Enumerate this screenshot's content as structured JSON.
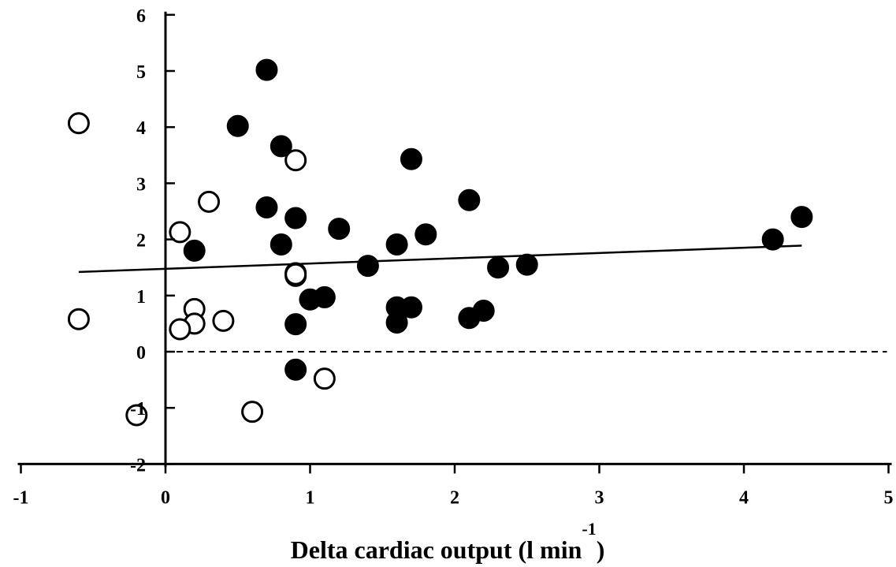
{
  "chart_data": {
    "type": "scatter",
    "title": "",
    "xlabel": "Delta cardiac output (l min",
    "xlabel_sup": "-1",
    "xlabel_close": ")",
    "ylabel": "",
    "xlim": [
      -1,
      5
    ],
    "ylim": [
      -2,
      6
    ],
    "x_ticks": [
      -1,
      0,
      1,
      2,
      3,
      4,
      5
    ],
    "y_ticks": [
      -2,
      -1,
      0,
      1,
      2,
      3,
      4,
      5,
      6
    ],
    "grid": false,
    "legend": "none",
    "reference_line": {
      "y": 0,
      "style": "dashed"
    },
    "trend_line": {
      "x": [
        -0.6,
        4.4
      ],
      "y": [
        1.42,
        1.89
      ]
    },
    "series": [
      {
        "style": "filled",
        "color": "#000000",
        "points": [
          {
            "x": 0.7,
            "y": 5.02
          },
          {
            "x": 0.5,
            "y": 4.02
          },
          {
            "x": 0.8,
            "y": 3.66
          },
          {
            "x": 1.7,
            "y": 3.43
          },
          {
            "x": 0.7,
            "y": 2.57
          },
          {
            "x": 0.9,
            "y": 2.38
          },
          {
            "x": 2.1,
            "y": 2.7
          },
          {
            "x": 1.2,
            "y": 2.19
          },
          {
            "x": 1.8,
            "y": 2.09
          },
          {
            "x": 0.8,
            "y": 1.91
          },
          {
            "x": 1.6,
            "y": 1.91
          },
          {
            "x": 0.2,
            "y": 1.8
          },
          {
            "x": 1.4,
            "y": 1.53
          },
          {
            "x": 2.3,
            "y": 1.5
          },
          {
            "x": 2.5,
            "y": 1.55
          },
          {
            "x": 0.9,
            "y": 1.35
          },
          {
            "x": 0.9,
            "y": 1.4
          },
          {
            "x": 1.0,
            "y": 0.93
          },
          {
            "x": 1.1,
            "y": 0.97
          },
          {
            "x": 1.6,
            "y": 0.79
          },
          {
            "x": 1.7,
            "y": 0.79
          },
          {
            "x": 2.2,
            "y": 0.73
          },
          {
            "x": 2.1,
            "y": 0.6
          },
          {
            "x": 1.6,
            "y": 0.52
          },
          {
            "x": 0.9,
            "y": 0.49
          },
          {
            "x": 0.9,
            "y": -0.32
          },
          {
            "x": 4.2,
            "y": 2.0
          },
          {
            "x": 4.4,
            "y": 2.4
          }
        ]
      },
      {
        "style": "open",
        "color": "#000000",
        "points": [
          {
            "x": -0.6,
            "y": 4.07
          },
          {
            "x": 0.9,
            "y": 3.41
          },
          {
            "x": 0.3,
            "y": 2.67
          },
          {
            "x": 0.1,
            "y": 2.13
          },
          {
            "x": 0.9,
            "y": 1.38
          },
          {
            "x": 0.2,
            "y": 0.76
          },
          {
            "x": -0.6,
            "y": 0.58
          },
          {
            "x": 0.4,
            "y": 0.55
          },
          {
            "x": 0.2,
            "y": 0.5
          },
          {
            "x": 0.1,
            "y": 0.4
          },
          {
            "x": 1.1,
            "y": -0.48
          },
          {
            "x": 0.6,
            "y": -1.07
          },
          {
            "x": -0.2,
            "y": -1.13
          }
        ]
      }
    ]
  }
}
